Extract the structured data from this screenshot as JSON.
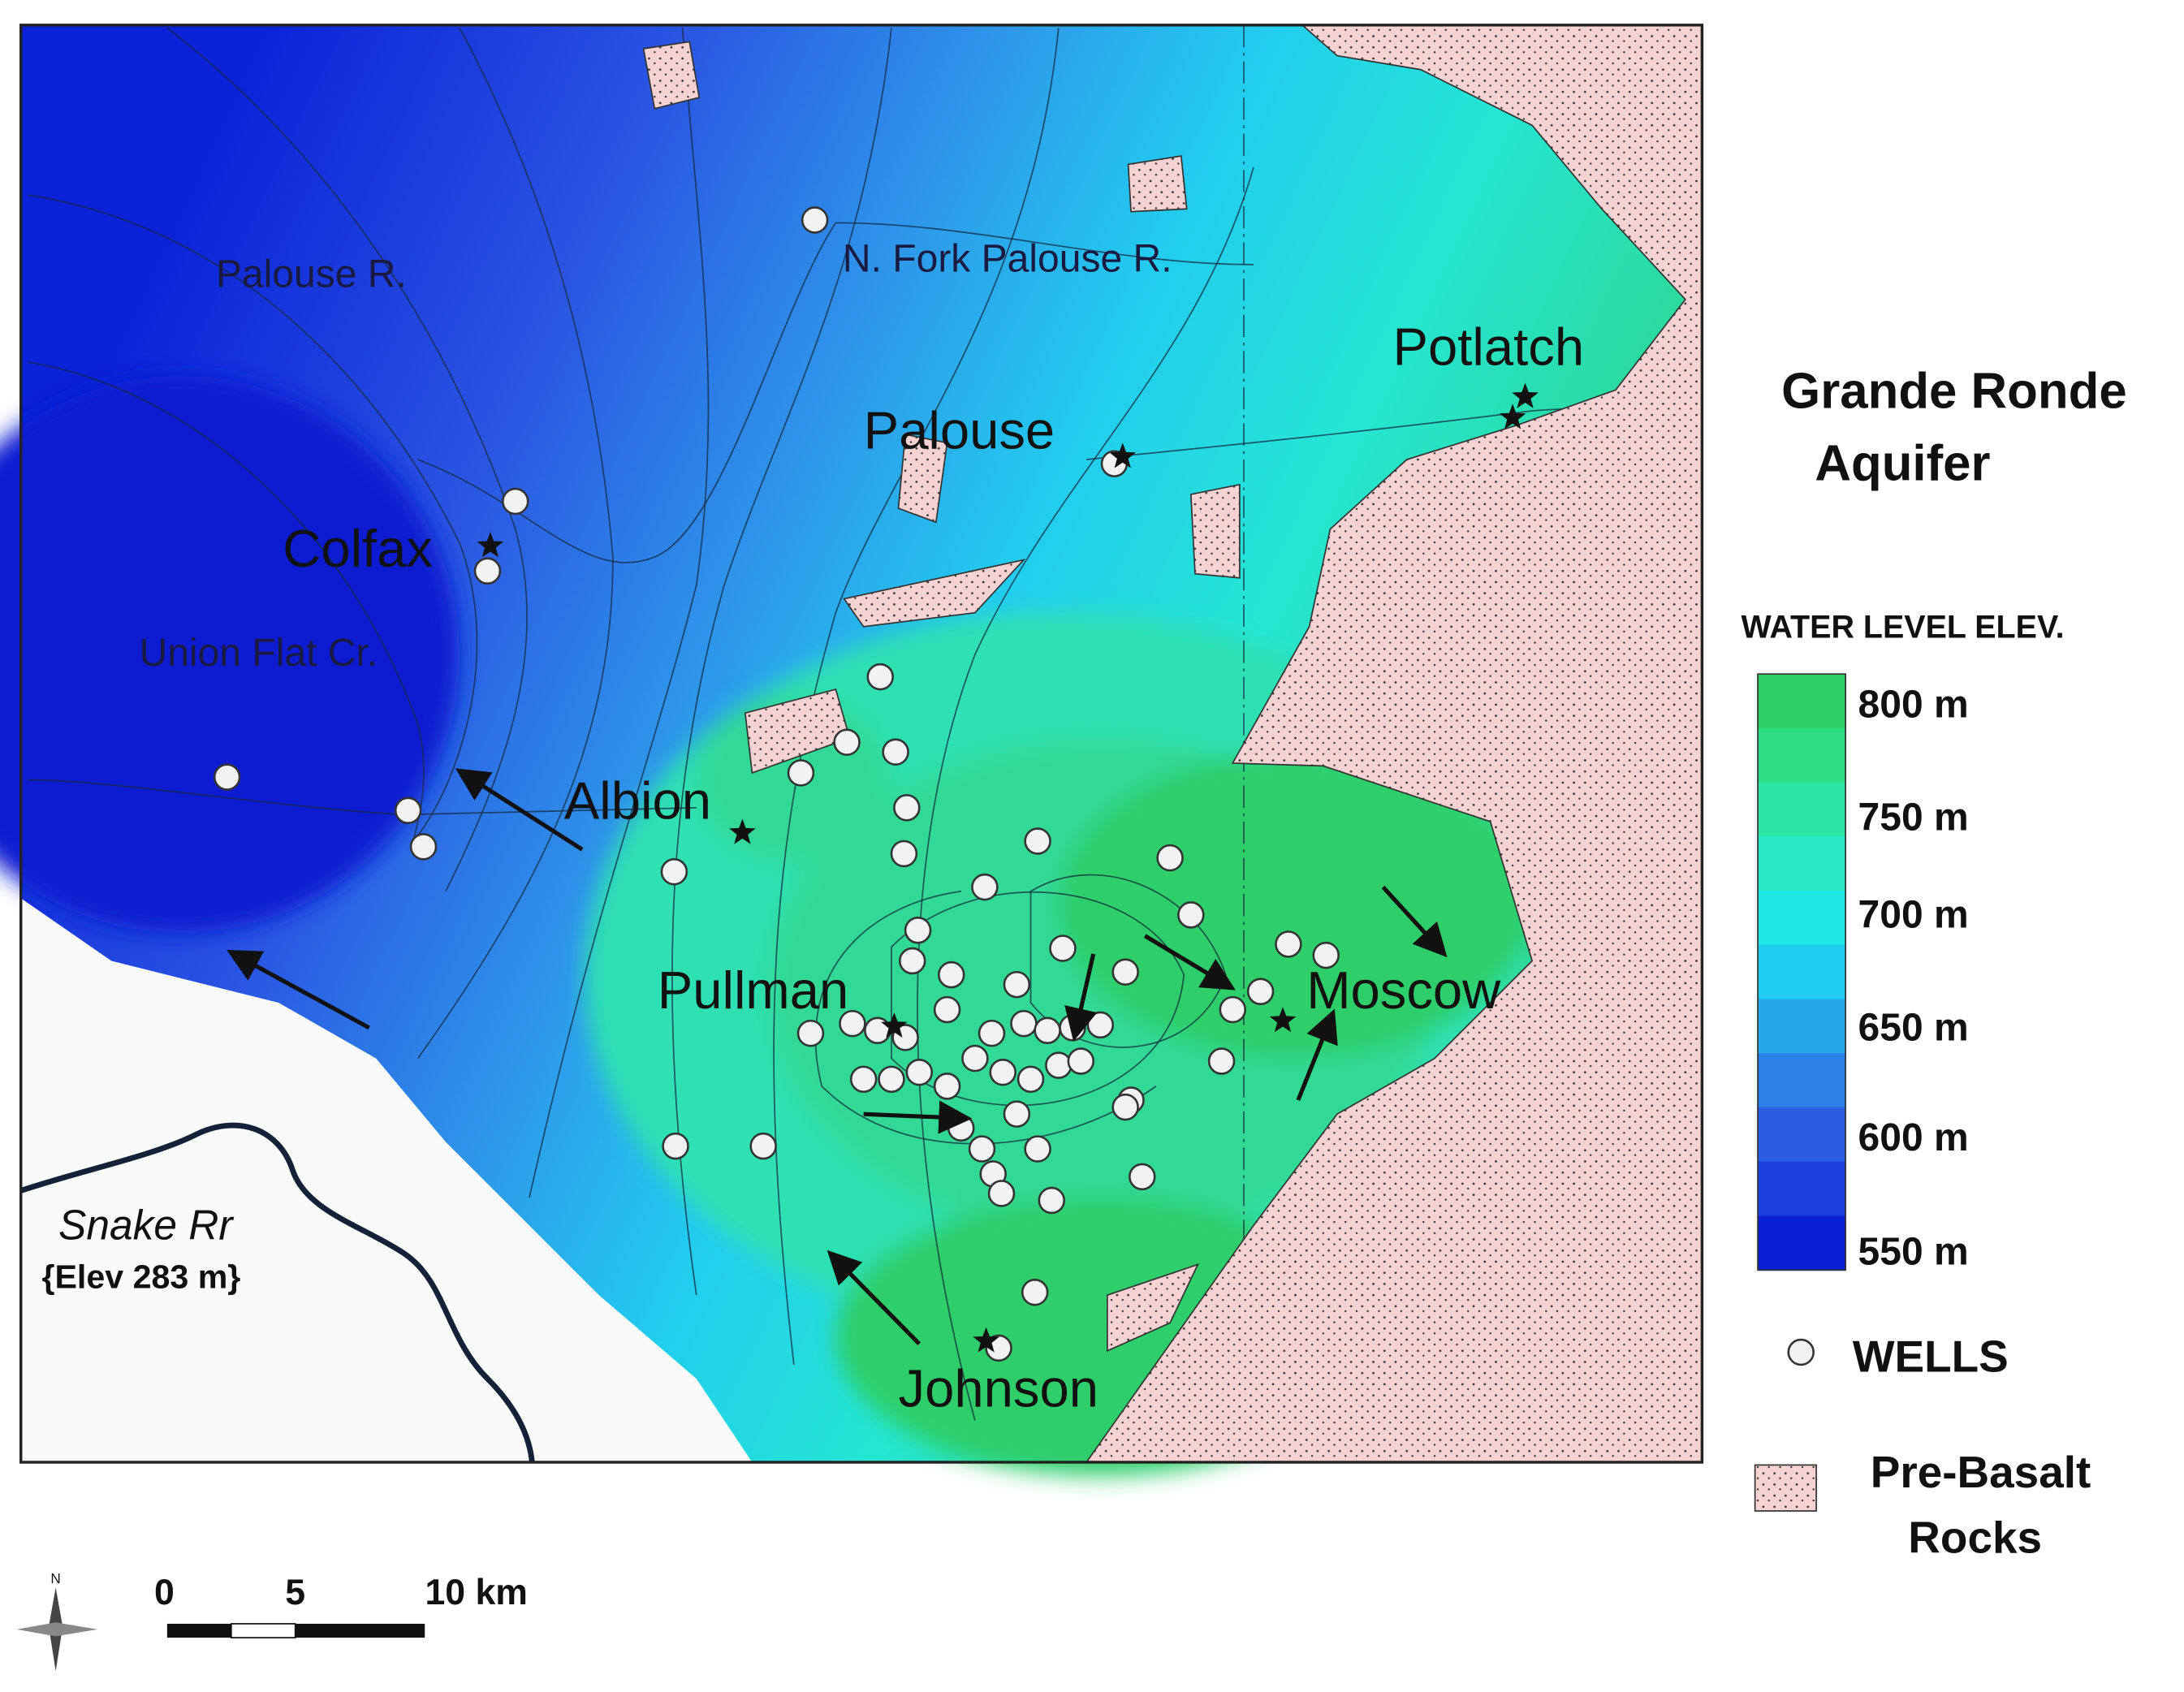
{
  "map": {
    "places": [
      "Colfax",
      "Palouse",
      "Potlatch",
      "Albion",
      "Pullman",
      "Moscow",
      "Johnson"
    ],
    "rivers": [
      "Palouse R.",
      "N. Fork Palouse R.",
      "Union Flat Cr."
    ],
    "snake_label": "Snake Rr",
    "snake_elev": "{Elev 283 m}"
  },
  "legend": {
    "title_line1": "Grande Ronde",
    "title_line2": "Aquifer",
    "subtitle": "WATER LEVEL ELEV.",
    "levels": [
      "800 m",
      "750 m",
      "700 m",
      "650 m",
      "600 m",
      "550 m"
    ],
    "wells": "WELLS",
    "pre_basalt_line1": "Pre-Basalt",
    "pre_basalt_line2": "Rocks"
  },
  "scale": {
    "labels": [
      "0",
      "5",
      "10 km"
    ]
  },
  "north": "N"
}
